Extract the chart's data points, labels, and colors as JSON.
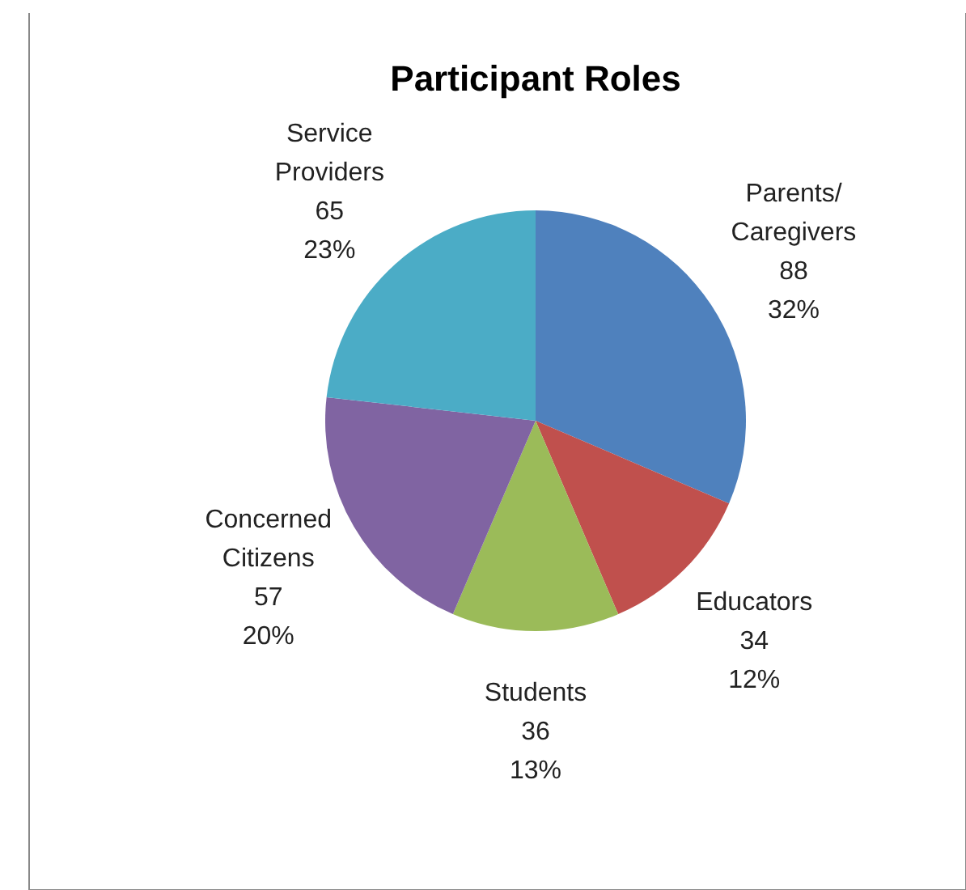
{
  "chart_data": {
    "type": "pie",
    "title": "Participant Roles",
    "categories": [
      "Parents/ Caregivers",
      "Educators",
      "Students",
      "Concerned Citizens",
      "Service Providers"
    ],
    "values": [
      88,
      34,
      36,
      57,
      65
    ],
    "colors": [
      "#4f81bd",
      "#c0504d",
      "#9bbb59",
      "#8064a2",
      "#4bacc6"
    ],
    "value_labels": [
      "88\n32%",
      "34\n12%",
      "36\n13%",
      "57\n20%",
      "65\n23%"
    ]
  }
}
